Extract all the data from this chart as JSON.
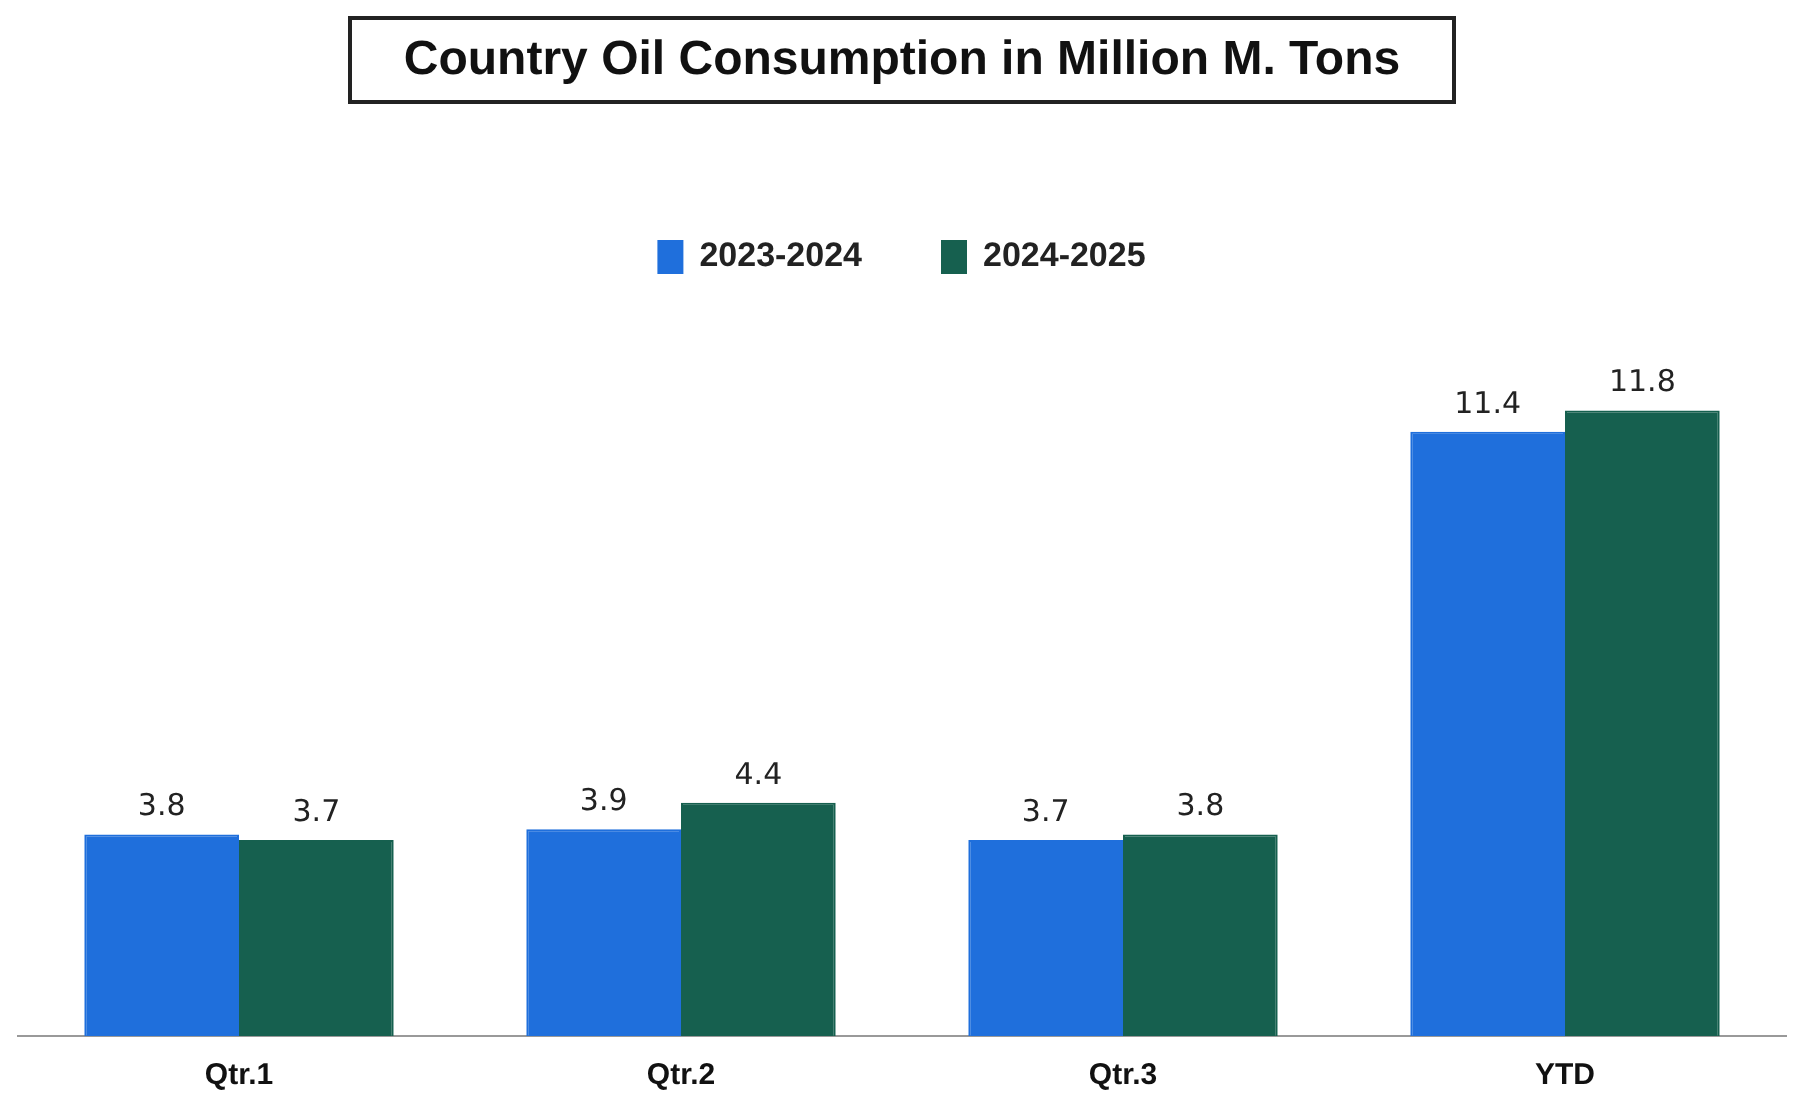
{
  "chart_data": {
    "type": "bar",
    "title": "Country Oil Consumption in Million M. Tons",
    "categories": [
      "Qtr.1",
      "Qtr.2",
      "Qtr.3",
      "YTD"
    ],
    "series": [
      {
        "name": "2023-2024",
        "color": "#1f6fdc",
        "values": [
          3.8,
          3.9,
          3.7,
          11.4
        ]
      },
      {
        "name": "2024-2025",
        "color": "#16604f",
        "values": [
          3.7,
          4.4,
          3.8,
          11.8
        ]
      }
    ],
    "data_labels": true,
    "legend": "top",
    "grid": false,
    "tick_labels": "x"
  }
}
